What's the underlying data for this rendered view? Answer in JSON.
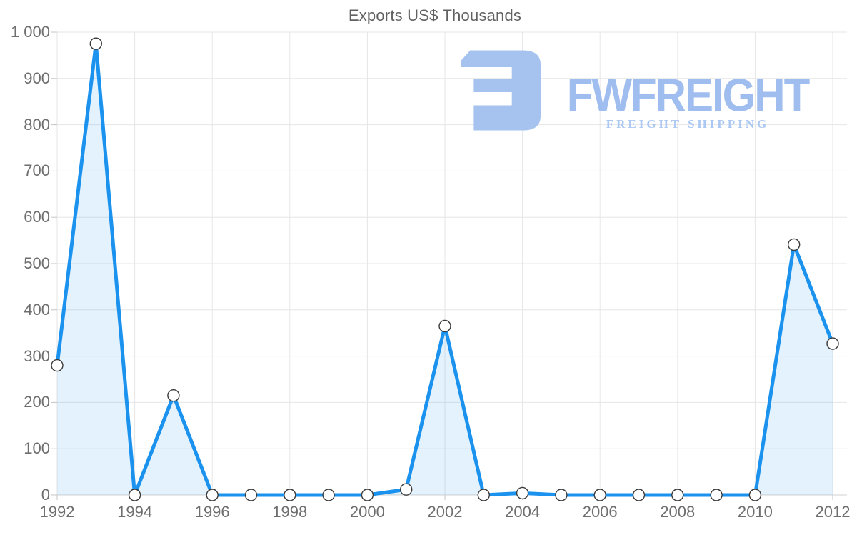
{
  "chart_data": {
    "type": "area",
    "title": "Exports US$ Thousands",
    "x": [
      1992,
      1993,
      1994,
      1995,
      1996,
      1997,
      1998,
      1999,
      2000,
      2001,
      2002,
      2003,
      2004,
      2005,
      2006,
      2007,
      2008,
      2009,
      2010,
      2011,
      2012
    ],
    "values": [
      280,
      975,
      0,
      215,
      0,
      0,
      0,
      0,
      0,
      12,
      365,
      0,
      4,
      0,
      0,
      0,
      0,
      0,
      0,
      541,
      327
    ],
    "series_name": "Exports US$ Thousands",
    "xlabel": "",
    "ylabel": "",
    "xlim": [
      1992,
      2012
    ],
    "ylim": [
      0,
      1000
    ],
    "y_tick_values": [
      0,
      100,
      200,
      300,
      400,
      500,
      600,
      700,
      800,
      900,
      1000
    ],
    "y_tick_labels": [
      "0",
      "100",
      "200",
      "300",
      "400",
      "500",
      "600",
      "700",
      "800",
      "900",
      "1 000"
    ],
    "x_tick_values": [
      1992,
      1994,
      1996,
      1998,
      2000,
      2002,
      2004,
      2006,
      2008,
      2010,
      2012
    ],
    "x_tick_labels": [
      "1992",
      "1994",
      "1996",
      "1998",
      "2000",
      "2002",
      "2004",
      "2006",
      "2008",
      "2010",
      "2012"
    ],
    "grid": true,
    "legend": "none",
    "marker": "circle"
  },
  "logo": {
    "brand": "FWFREIGHT",
    "tagline": "FREIGHT SHIPPING"
  },
  "colors": {
    "line": "#1b93ee",
    "area_fill": "rgba(30,147,238,0.12)",
    "grid": "#e6e6e6",
    "axis": "#d2d2d2",
    "tick": "#c4c4c4",
    "marker_fill": "#ffffff",
    "marker_stroke": "#3a3a3a",
    "title_text": "#616161",
    "label_text": "#6e6e6e",
    "logo_blue": "#a6c3f0"
  }
}
